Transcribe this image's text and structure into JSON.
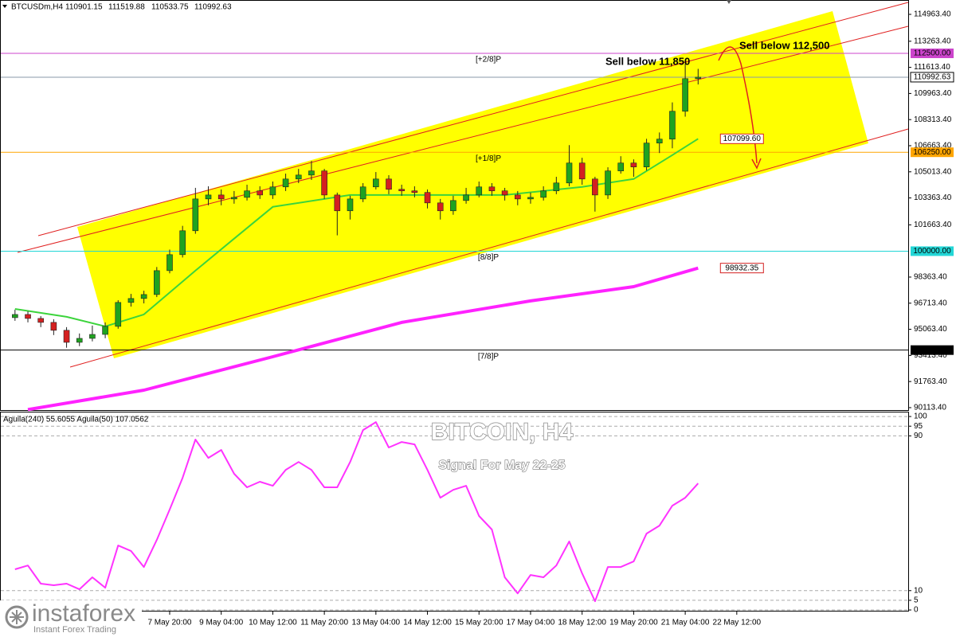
{
  "chart_data": [
    {
      "type": "candlestick",
      "title": "BTCUSDm,H4",
      "xlim": [
        -0.67,
        69.3
      ],
      "xticks": [
        {
          "value": 12,
          "label": "7 May 20:00"
        },
        {
          "value": 16,
          "label": "9 May 04:00"
        },
        {
          "value": 20,
          "label": "10 May 12:00"
        },
        {
          "value": 24,
          "label": "11 May 20:00"
        },
        {
          "value": 28,
          "label": "13 May 04:00"
        },
        {
          "value": 32,
          "label": "14 May 12:00"
        },
        {
          "value": 36,
          "label": "15 May 20:00"
        },
        {
          "value": 40,
          "label": "17 May 04:00"
        },
        {
          "value": 44,
          "label": "18 May 12:00"
        },
        {
          "value": 48,
          "label": "19 May 20:00"
        },
        {
          "value": 52,
          "label": "21 May 04:00"
        },
        {
          "value": 56,
          "label": "22 May 12:00"
        }
      ],
      "ylim": [
        89960,
        115870
      ],
      "yticks": [
        {
          "value": 114963.4,
          "label": "114963.40"
        },
        {
          "value": 113263.4,
          "label": "113263.40"
        },
        {
          "value": 111613.4,
          "label": "111613.40"
        },
        {
          "value": 109963.4,
          "label": "109963.40"
        },
        {
          "value": 108313.4,
          "label": "108313.40"
        },
        {
          "value": 106663.4,
          "label": "106663.40"
        },
        {
          "value": 105013.4,
          "label": "105013.40"
        },
        {
          "value": 103363.4,
          "label": "103363.40"
        },
        {
          "value": 101663.4,
          "label": "101663.40"
        },
        {
          "value": 98363.4,
          "label": "98363.40"
        },
        {
          "value": 96713.4,
          "label": "96713.40"
        },
        {
          "value": 95063.4,
          "label": "95063.40"
        },
        {
          "value": 93413.4,
          "label": "93413.40"
        },
        {
          "value": 91763.4,
          "label": "91763.40"
        },
        {
          "value": 90113.4,
          "label": "90113.40"
        }
      ],
      "up_color": "#1fa31f",
      "down_color": "#d42020",
      "open": [
        95800,
        96000,
        95750,
        95500,
        95000,
        94240,
        94490,
        94740,
        95250,
        96760,
        97010,
        97260,
        98770,
        99780,
        101290,
        103300,
        103550,
        103300,
        103400,
        103810,
        103550,
        104060,
        104560,
        104810,
        105070,
        103550,
        102550,
        103300,
        104060,
        104560,
        103910,
        103810,
        103710,
        103050,
        102550,
        103200,
        103550,
        104060,
        103810,
        103550,
        103300,
        103400,
        103810,
        104310,
        105570,
        104560,
        103550,
        105070,
        105570,
        105320,
        106830,
        107080,
        108840,
        110901.15
      ],
      "high": [
        96300,
        96200,
        95900,
        95700,
        95200,
        94800,
        95300,
        95500,
        96900,
        97300,
        97500,
        99000,
        100100,
        101600,
        104000,
        104100,
        103900,
        103800,
        104200,
        104100,
        104400,
        104900,
        105200,
        105700,
        105200,
        103700,
        103500,
        104300,
        105000,
        104800,
        104200,
        104100,
        103900,
        103300,
        103500,
        104000,
        104400,
        104300,
        104000,
        103800,
        103700,
        104100,
        104700,
        106700,
        105900,
        104700,
        105300,
        106000,
        105800,
        107100,
        107500,
        109400,
        111850,
        111519.88
      ],
      "low": [
        95600,
        95500,
        95200,
        94700,
        93900,
        94000,
        94300,
        94500,
        95100,
        96500,
        96700,
        97100,
        98600,
        99600,
        101100,
        102900,
        102900,
        103000,
        103200,
        103300,
        103300,
        103800,
        104300,
        104500,
        103300,
        101000,
        102000,
        103100,
        103900,
        103600,
        103500,
        103400,
        102700,
        102000,
        102300,
        103000,
        103400,
        103500,
        103200,
        102900,
        103000,
        103200,
        103600,
        104100,
        104200,
        102500,
        103300,
        104900,
        104700,
        105100,
        106200,
        106500,
        108500,
        110533.75
      ],
      "close": [
        96000,
        95750,
        95500,
        95000,
        94240,
        94490,
        94740,
        95250,
        96760,
        97010,
        97260,
        98770,
        99780,
        101290,
        103300,
        103550,
        103300,
        103400,
        103810,
        103550,
        104060,
        104560,
        104810,
        105070,
        103550,
        102550,
        103300,
        104060,
        104560,
        103910,
        103810,
        103710,
        103050,
        102550,
        103200,
        103550,
        104060,
        103810,
        103550,
        103300,
        103400,
        103810,
        104310,
        105570,
        104560,
        103550,
        105070,
        105570,
        105320,
        106830,
        107080,
        108840,
        110900,
        110992.63
      ],
      "series": [
        {
          "color": "#3cd43c",
          "width": 2,
          "x": [
            0,
            4,
            7,
            10,
            14,
            17,
            20,
            26,
            32,
            38,
            44,
            48,
            51,
            53
          ],
          "values": [
            96350,
            95850,
            95250,
            96000,
            98770,
            100790,
            102800,
            103550,
            103550,
            103550,
            104060,
            104560,
            106070,
            107099.6
          ],
          "value_label": "107099.60"
        },
        {
          "color": "#ff22ff",
          "width": 4,
          "x": [
            1,
            10,
            20,
            30,
            40,
            48,
            53
          ],
          "values": [
            89990,
            91220,
            93330,
            95500,
            96860,
            97760,
            98932.35
          ],
          "value_label": "98932.35"
        }
      ],
      "levels": [
        {
          "value": 112500,
          "label": "112500.00",
          "tag": "[+2/8]P",
          "color": "#cc44cc"
        },
        {
          "value": 106250,
          "label": "106250.00",
          "tag": "[+1/8]P",
          "color": "#ffa500"
        },
        {
          "value": 100000,
          "label": "100000.00",
          "tag": "[8/8]P",
          "color": "#22d6d6"
        },
        {
          "value": 93750,
          "label": "93750.00",
          "tag": "[7/8]P",
          "color": "#000000"
        }
      ],
      "annotations": [
        "Sell below 11,850",
        "Sell below 112,500"
      ]
    },
    {
      "type": "line",
      "title": "Aguila(240) 55.6055 Aguila(50) 107.0562",
      "ylim": [
        -0.8,
        102.5
      ],
      "yticks": [
        100,
        95,
        90,
        10,
        5,
        0
      ],
      "grid": true,
      "series": [
        {
          "color": "#ff33ff",
          "width": 2,
          "values": [
            21.0,
            23.0,
            13.6,
            12.8,
            13.6,
            10.7,
            16.9,
            11.5,
            33.3,
            30.5,
            22.2,
            36.2,
            51.9,
            68.3,
            88.1,
            78.6,
            82.7,
            70.4,
            63.4,
            66.3,
            64.2,
            72.4,
            76.5,
            72.4,
            63.4,
            63.4,
            76.5,
            93.0,
            97.1,
            84.0,
            86.8,
            85.6,
            72.4,
            58.0,
            62.1,
            64.2,
            48.6,
            41.6,
            16.9,
            8.6,
            18.1,
            16.9,
            23.0,
            35.4,
            18.9,
            4.5,
            22.2,
            22.2,
            25.1,
            39.5,
            43.6,
            53.9,
            58.0,
            65.4
          ]
        }
      ]
    }
  ],
  "watermark": {
    "title": "BITCOIN, H4",
    "subtitle": "Signal For May 22-25"
  },
  "logo": {
    "name": "instaforex",
    "tagline": "Instant Forex Trading"
  }
}
